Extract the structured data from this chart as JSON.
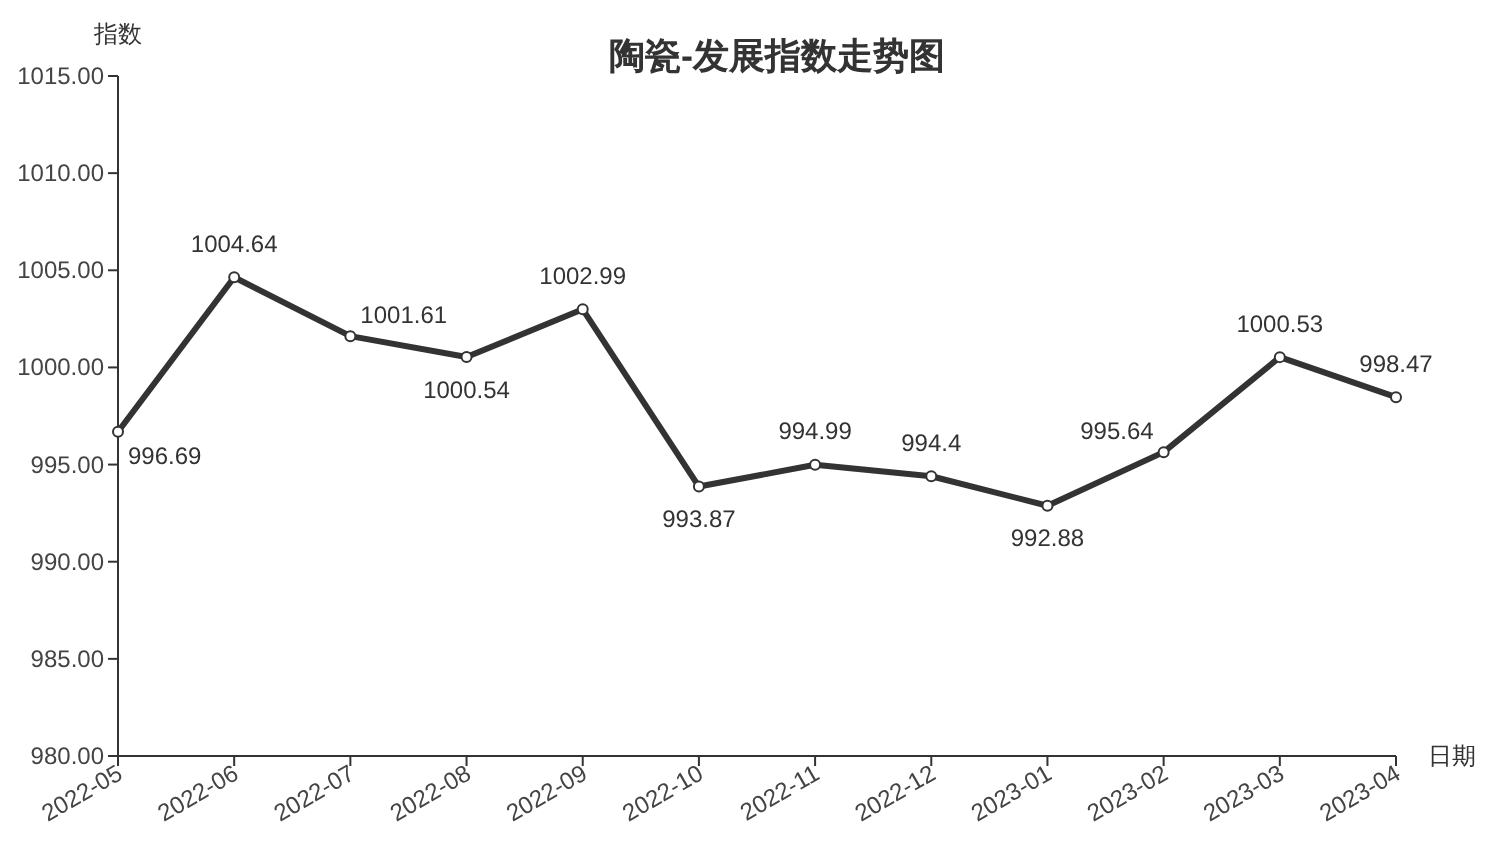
{
  "chart_data": {
    "type": "line",
    "title": "陶瓷-发展指数走势图",
    "xlabel": "日期",
    "ylabel": "指数",
    "categories": [
      "2022-05",
      "2022-06",
      "2022-07",
      "2022-08",
      "2022-09",
      "2022-10",
      "2022-11",
      "2022-12",
      "2023-01",
      "2023-02",
      "2023-03",
      "2023-04"
    ],
    "series": [
      {
        "color": "#333333",
        "values": [
          996.69,
          1004.64,
          1001.61,
          1000.54,
          1002.99,
          993.87,
          994.99,
          994.4,
          992.88,
          995.64,
          1000.53,
          998.47
        ]
      }
    ],
    "ylim": [
      980,
      1015
    ],
    "yticks": [
      {
        "value": 980,
        "label": "980.00"
      },
      {
        "value": 985,
        "label": "985.00"
      },
      {
        "value": 990,
        "label": "990.00"
      },
      {
        "value": 995,
        "label": "995.00"
      },
      {
        "value": 1000,
        "label": "1000.00"
      },
      {
        "value": 1005,
        "label": "1005.00"
      },
      {
        "value": 1010,
        "label": "1010.00"
      },
      {
        "value": 1015,
        "label": "1015.00"
      }
    ],
    "marker": "circle",
    "line_style": "solid",
    "data_labels": true
  }
}
